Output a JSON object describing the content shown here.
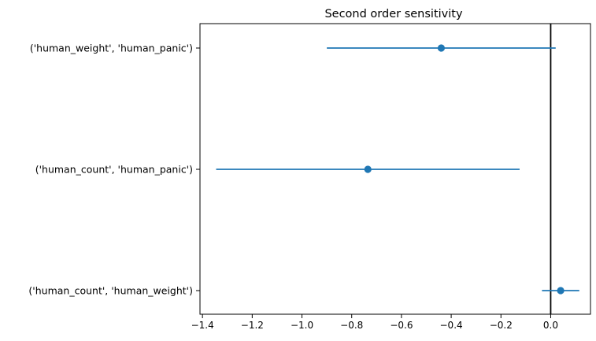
{
  "chart_data": {
    "type": "scatter",
    "title": "Second order sensitivity",
    "xlabel": "",
    "ylabel": "",
    "xlim": [
      -1.41,
      0.16
    ],
    "xticks": [
      -1.4,
      -1.2,
      -1.0,
      -0.8,
      -0.6,
      -0.4,
      -0.2,
      0.0
    ],
    "xtick_labels": [
      "−1.4",
      "−1.2",
      "−1.0",
      "−0.8",
      "−0.6",
      "−0.4",
      "−0.2",
      "0.0"
    ],
    "categories": [
      "('human_weight', 'human_panic')",
      "('human_count', 'human_panic')",
      "('human_count', 'human_weight')"
    ],
    "series": [
      {
        "values": [
          -0.44,
          -0.735,
          0.04
        ],
        "error_low": [
          -0.9,
          -1.345,
          -0.035
        ],
        "error_high": [
          0.02,
          -0.125,
          0.115
        ]
      }
    ],
    "reference_line_x": 0.0,
    "grid": false,
    "colors": {
      "marker": "#1f77b4",
      "reference_line": "#000000"
    }
  }
}
